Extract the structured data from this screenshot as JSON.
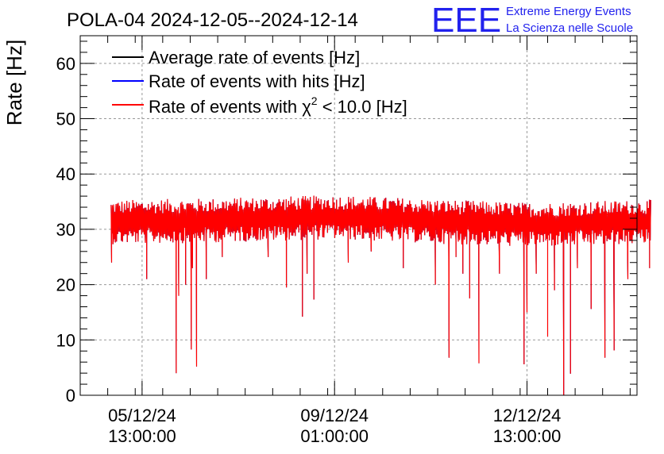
{
  "header": {
    "title": "POLA-04 2024-12-05--2024-12-14",
    "logo_text": "EEE",
    "logo_line1": "Extreme Energy Events",
    "logo_line2": "La Scienza nelle Scuole"
  },
  "chart_data": {
    "type": "line",
    "ylabel": "Rate [Hz]",
    "xlabel": "",
    "ylim": [
      0,
      65
    ],
    "yticks": [
      0,
      10,
      20,
      30,
      40,
      50,
      60
    ],
    "grid": true,
    "legend_position": "top-left",
    "xaxis": {
      "start_hours": -27,
      "end_hours": 216,
      "ticks": [
        {
          "hours": 0,
          "date": "05/12/24",
          "time": "13:00:00"
        },
        {
          "hours": 84,
          "date": "09/12/24",
          "time": "01:00:00"
        },
        {
          "hours": 168,
          "date": "12/12/24",
          "time": "13:00:00"
        }
      ]
    },
    "series": [
      {
        "name": "Average rate of events [Hz]",
        "color": "#000000"
      },
      {
        "name": "Rate of events with hits [Hz]",
        "color": "#0000ff"
      },
      {
        "name": "Rate of events with χ² < 10.0 [Hz]",
        "color": "#ff0000",
        "legend_main": "Rate of events with ",
        "legend_chi": "χ",
        "legend_sup": "2",
        "legend_rest": " < 10.0 [Hz]"
      }
    ],
    "data_range_hours": [
      -13.5,
      222
    ],
    "baseline": [
      {
        "hours": -13.5,
        "value": 31.5
      },
      {
        "hours": 30,
        "value": 31.8
      },
      {
        "hours": 84,
        "value": 32.4
      },
      {
        "hours": 130,
        "value": 31.6
      },
      {
        "hours": 170,
        "value": 31.0
      },
      {
        "hours": 225,
        "value": 31.6
      }
    ],
    "dips": [
      {
        "hours": -13.3,
        "value": 24
      },
      {
        "hours": -12.5,
        "value": 28
      },
      {
        "hours": 2,
        "value": 21
      },
      {
        "hours": 14.9,
        "value": 4
      },
      {
        "hours": 16,
        "value": 18
      },
      {
        "hours": 19,
        "value": 20
      },
      {
        "hours": 22,
        "value": 23
      },
      {
        "hours": 21.5,
        "value": 8.3
      },
      {
        "hours": 23.8,
        "value": 5.2
      },
      {
        "hours": 28,
        "value": 21
      },
      {
        "hours": 35,
        "value": 25
      },
      {
        "hours": 55,
        "value": 25
      },
      {
        "hours": 63,
        "value": 19.5
      },
      {
        "hours": 70,
        "value": 14.2
      },
      {
        "hours": 72,
        "value": 22
      },
      {
        "hours": 75,
        "value": 17.3
      },
      {
        "hours": 90,
        "value": 24
      },
      {
        "hours": 100,
        "value": 26
      },
      {
        "hours": 114,
        "value": 23
      },
      {
        "hours": 128,
        "value": 20
      },
      {
        "hours": 134,
        "value": 6.8
      },
      {
        "hours": 137,
        "value": 25
      },
      {
        "hours": 140,
        "value": 22
      },
      {
        "hours": 143,
        "value": 17.5
      },
      {
        "hours": 147,
        "value": 5.8
      },
      {
        "hours": 156,
        "value": 22
      },
      {
        "hours": 166.7,
        "value": 5.6
      },
      {
        "hours": 168,
        "value": 15
      },
      {
        "hours": 172,
        "value": 22
      },
      {
        "hours": 177,
        "value": 10.6
      },
      {
        "hours": 180,
        "value": 19
      },
      {
        "hours": 184,
        "value": 0
      },
      {
        "hours": 187,
        "value": 3.9
      },
      {
        "hours": 190,
        "value": 23
      },
      {
        "hours": 196,
        "value": 15.6
      },
      {
        "hours": 202,
        "value": 6.8
      },
      {
        "hours": 206,
        "value": 8.1
      },
      {
        "hours": 212,
        "value": 21
      },
      {
        "hours": 221.5,
        "value": 23
      }
    ],
    "tail": [
      {
        "hours": 222,
        "value": 32.7
      },
      {
        "hours": 222,
        "value": 31.0
      }
    ]
  }
}
